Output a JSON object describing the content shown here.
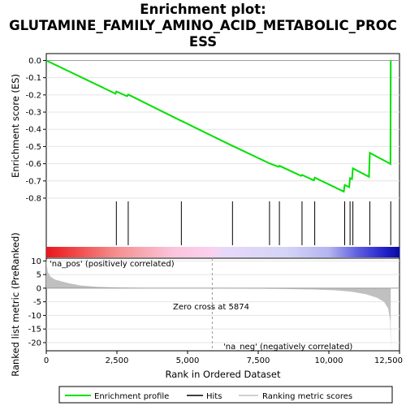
{
  "title_lines": [
    "Enrichment plot:",
    "GLUTAMINE_FAMILY_AMINO_ACID_METABOLIC_PROC",
    "ESS"
  ],
  "colors": {
    "es_line": "#00e000",
    "hits": "#000000",
    "metric_fill": "#c0c0c0",
    "neg_label": "#0000cc",
    "pos_label": "#cc0000"
  },
  "chart_data": {
    "type": "line",
    "x_range": [
      0,
      12500
    ],
    "x_ticks": [
      0,
      2500,
      5000,
      7500,
      10000,
      12500
    ],
    "x_tick_labels": [
      "0",
      "2,500",
      "5,000",
      "7,500",
      "10,000",
      "12,500"
    ],
    "xlabel": "Rank in Ordered Dataset",
    "es_panel": {
      "ylabel": "Enrichment score (ES)",
      "ylim": [
        -0.8,
        0.04
      ],
      "y_ticks": [
        0.0,
        -0.1,
        -0.2,
        -0.3,
        -0.4,
        -0.5,
        -0.6,
        -0.7,
        -0.8
      ],
      "y_tick_labels": [
        "0.0",
        "-0.1",
        "-0.2",
        "-0.3",
        "-0.4",
        "-0.5",
        "-0.6",
        "-0.7",
        "-0.8"
      ],
      "series": [
        {
          "name": "Enrichment profile",
          "x": [
            0,
            2450,
            2480,
            2860,
            2900,
            4750,
            4780,
            6560,
            6590,
            7870,
            7900,
            8220,
            8250,
            9020,
            9050,
            9470,
            9500,
            10530,
            10560,
            10720,
            10750,
            10820,
            10850,
            11420,
            11450,
            12180,
            12190
          ],
          "y": [
            0.0,
            -0.193,
            -0.18,
            -0.208,
            -0.198,
            -0.349,
            -0.351,
            -0.494,
            -0.496,
            -0.596,
            -0.598,
            -0.618,
            -0.612,
            -0.671,
            -0.665,
            -0.697,
            -0.681,
            -0.762,
            -0.724,
            -0.736,
            -0.684,
            -0.689,
            -0.627,
            -0.676,
            -0.537,
            -0.601,
            0.0
          ]
        }
      ]
    },
    "hits": [
      2480,
      2900,
      4780,
      6590,
      7900,
      8250,
      9050,
      9500,
      10560,
      10750,
      10850,
      11450,
      12190
    ],
    "metric_panel": {
      "ylabel": "Ranked list metric (PreRanked)",
      "ylim": [
        -23,
        11
      ],
      "y_ticks": [
        10,
        5,
        0,
        -5,
        -10,
        -15,
        -20
      ],
      "y_tick_labels": [
        "10",
        "5",
        "0",
        "-5",
        "-10",
        "-15",
        "-20"
      ],
      "x": [
        0,
        50,
        150,
        300,
        500,
        800,
        1200,
        1800,
        2500,
        3500,
        5000,
        5874,
        7000,
        8500,
        9500,
        10200,
        10800,
        11300,
        11700,
        11950,
        12100,
        12170,
        12190
      ],
      "y": [
        10.5,
        6.0,
        4.2,
        3.2,
        2.6,
        1.8,
        1.0,
        0.5,
        0.25,
        0.1,
        0.02,
        0.0,
        -0.1,
        -0.3,
        -0.5,
        -0.8,
        -1.3,
        -2.2,
        -3.5,
        -5.0,
        -7.5,
        -12.0,
        -22.5
      ],
      "zero_cross_label": "Zero cross at 5874",
      "zero_cross_x": 5874,
      "pos_label": "'na_pos' (positively correlated)",
      "neg_label": "'na_neg' (negatively correlated)"
    },
    "legend": [
      "Enrichment profile",
      "Hits",
      "Ranking metric scores"
    ]
  }
}
